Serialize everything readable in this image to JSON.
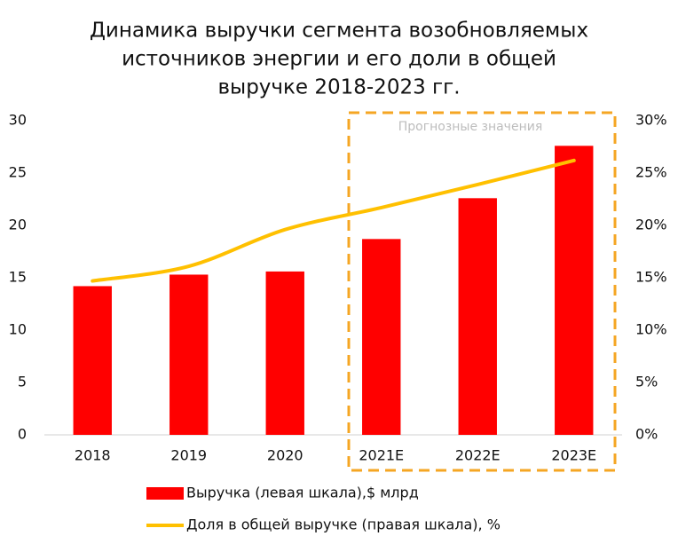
{
  "chart_data": {
    "type": "bar",
    "title": [
      "Динамика выручки сегмента возобновляемых",
      "источников энергии и его доли в общей",
      "выручке 2018-2023 гг."
    ],
    "annotation": "Прогнозные значения",
    "categories": [
      "2018",
      "2019",
      "2020",
      "2021E",
      "2022E",
      "2023E"
    ],
    "series": [
      {
        "name": "Выручка (левая шкала),$ млрд",
        "type": "bar",
        "color": "#ff0000",
        "values": [
          14.2,
          15.3,
          15.6,
          18.7,
          22.6,
          27.6
        ]
      },
      {
        "name": "Доля в общей выручке (правая шкала), %",
        "type": "line",
        "axis": "y2",
        "color": "#ffc000",
        "values": [
          14.7,
          16.1,
          19.6,
          21.7,
          23.9,
          26.2
        ]
      }
    ],
    "ylim": [
      0,
      30
    ],
    "yticks": [
      0,
      5,
      10,
      15,
      20,
      25,
      30
    ],
    "y2lim": [
      0,
      30
    ],
    "y2ticks": [
      {
        "value": 0,
        "label": "0%"
      },
      {
        "value": 5,
        "label": "5%"
      },
      {
        "value": 10,
        "label": "10%"
      },
      {
        "value": 15,
        "label": "15%"
      },
      {
        "value": 20,
        "label": "20%"
      },
      {
        "value": 25,
        "label": "25%"
      },
      {
        "value": 30,
        "label": "30%"
      }
    ],
    "grid": false
  }
}
